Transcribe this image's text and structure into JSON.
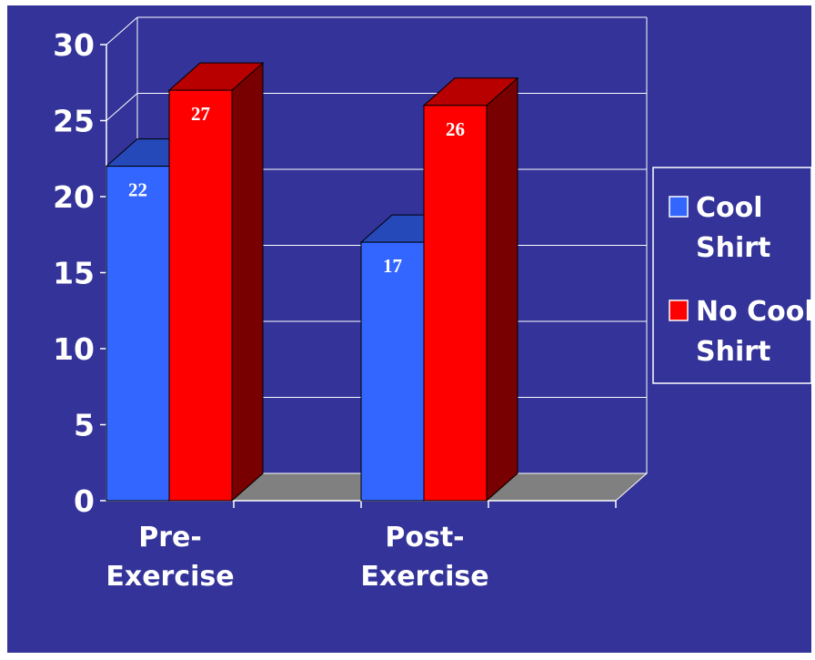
{
  "chart_data": {
    "type": "bar",
    "title": "",
    "xlabel": "",
    "ylabel": "",
    "categories": [
      "Pre-\nExercise",
      "Post-\nExercise"
    ],
    "series": [
      {
        "name": "Cool\nShirt",
        "values": [
          22,
          17
        ],
        "color": "#3366ff"
      },
      {
        "name": "No Cool\nShirt",
        "values": [
          27,
          26
        ],
        "color": "#ff0000"
      }
    ],
    "data_labels": [
      [
        "22",
        "17"
      ],
      [
        "27",
        "26"
      ]
    ],
    "ylim": [
      0,
      30
    ],
    "yticks": [
      "0",
      "5",
      "10",
      "15",
      "20",
      "25",
      "30"
    ],
    "grid": true,
    "three_d": true,
    "legend_position": "right",
    "background_color": "#333399",
    "floor_color": "#808080"
  }
}
